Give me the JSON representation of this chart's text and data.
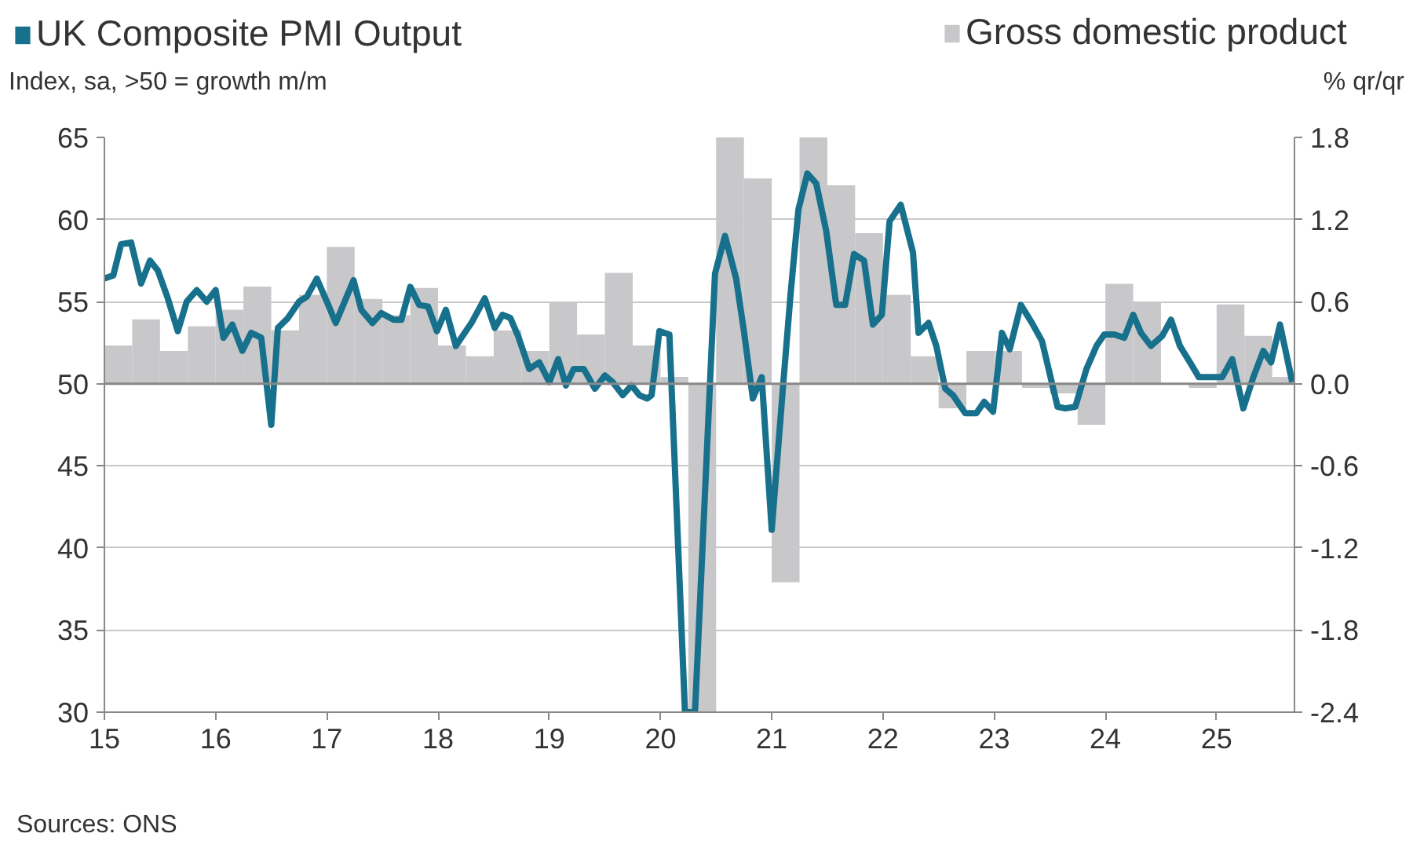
{
  "chart_data": {
    "type": "line",
    "ylabel": "Index, sa, >50 = growth m/m",
    "y2label": "% qr/qr",
    "xlim": [
      2015,
      2025.7
    ],
    "xticks": [
      {
        "value": 2015,
        "label": "15"
      },
      {
        "value": 2016,
        "label": "16"
      },
      {
        "value": 2017,
        "label": "17"
      },
      {
        "value": 2018,
        "label": "18"
      },
      {
        "value": 2019,
        "label": "19"
      },
      {
        "value": 2020,
        "label": "20"
      },
      {
        "value": 2021,
        "label": "21"
      },
      {
        "value": 2022,
        "label": "22"
      },
      {
        "value": 2023,
        "label": "23"
      },
      {
        "value": 2024,
        "label": "24"
      },
      {
        "value": 2025,
        "label": "25"
      }
    ],
    "ylim": [
      30,
      65
    ],
    "yticks": [
      30,
      35,
      40,
      45,
      50,
      55,
      60,
      65
    ],
    "y2lim": [
      -2.4,
      1.8
    ],
    "y2ticks": [
      {
        "value": -2.4,
        "label": "-2.4"
      },
      {
        "value": -1.8,
        "label": "-1.8"
      },
      {
        "value": -1.2,
        "label": "-1.2"
      },
      {
        "value": -0.6,
        "label": "-0.6"
      },
      {
        "value": 0,
        "label": "0.0"
      },
      {
        "value": 0.6,
        "label": "0.6"
      },
      {
        "value": 1.2,
        "label": "1.2"
      },
      {
        "value": 1.8,
        "label": "1.8"
      }
    ],
    "grid": "y",
    "legend": "top",
    "line_style": "solid",
    "marker": "none",
    "series": [
      {
        "name": "Gross domestic product",
        "type": "bar",
        "axis": "y2",
        "color": "#c8c8ca",
        "x": [
          2015.125,
          2015.375,
          2015.625,
          2015.875,
          2016.125,
          2016.375,
          2016.625,
          2016.875,
          2017.125,
          2017.375,
          2017.625,
          2017.875,
          2018.125,
          2018.375,
          2018.625,
          2018.875,
          2019.125,
          2019.375,
          2019.625,
          2019.875,
          2020.125,
          2020.375,
          2020.625,
          2020.875,
          2021.125,
          2021.375,
          2021.625,
          2021.875,
          2022.125,
          2022.375,
          2022.625,
          2022.875,
          2023.125,
          2023.375,
          2023.625,
          2023.875,
          2024.125,
          2024.375,
          2024.625,
          2024.875,
          2025.125,
          2025.375,
          2025.6
        ],
        "values": [
          0.28,
          0.47,
          0.24,
          0.42,
          0.54,
          0.71,
          0.39,
          0.65,
          1.0,
          0.62,
          0.5,
          0.7,
          0.28,
          0.2,
          0.39,
          0.24,
          0.6,
          0.36,
          0.81,
          0.28,
          0.05,
          -2.4,
          1.8,
          1.5,
          -1.45,
          1.8,
          1.45,
          1.1,
          0.65,
          0.2,
          -0.18,
          0.24,
          0.24,
          -0.03,
          -0.07,
          -0.3,
          0.73,
          0.6,
          null,
          -0.03,
          0.58,
          0.35,
          0.05
        ]
      },
      {
        "name": "UK Composite PMI Output",
        "color": "#17708c",
        "x": [
          2015.0,
          2015.08,
          2015.15,
          2015.24,
          2015.33,
          2015.41,
          2015.48,
          2015.57,
          2015.66,
          2015.74,
          2015.83,
          2015.92,
          2016.0,
          2016.07,
          2016.15,
          2016.24,
          2016.32,
          2016.41,
          2016.5,
          2016.56,
          2016.65,
          2016.75,
          2016.82,
          2016.91,
          2017.0,
          2017.08,
          2017.16,
          2017.24,
          2017.31,
          2017.41,
          2017.49,
          2017.6,
          2017.67,
          2017.75,
          2017.83,
          2017.91,
          2017.99,
          2018.07,
          2018.16,
          2018.3,
          2018.42,
          2018.51,
          2018.58,
          2018.65,
          2018.72,
          2018.82,
          2018.91,
          2019.0,
          2019.08,
          2019.15,
          2019.22,
          2019.31,
          2019.41,
          2019.5,
          2019.57,
          2019.66,
          2019.74,
          2019.81,
          2019.88,
          2019.92,
          2019.99,
          2020.08,
          2020.22,
          2020.31,
          2020.49,
          2020.58,
          2020.68,
          2020.75,
          2020.83,
          2020.91,
          2021.0,
          2021.1,
          2021.17,
          2021.24,
          2021.32,
          2021.4,
          2021.49,
          2021.58,
          2021.66,
          2021.74,
          2021.83,
          2021.91,
          2021.99,
          2022.06,
          2022.16,
          2022.27,
          2022.32,
          2022.41,
          2022.48,
          2022.56,
          2022.63,
          2022.74,
          2022.84,
          2022.91,
          2022.99,
          2023.07,
          2023.14,
          2023.24,
          2023.34,
          2023.43,
          2023.57,
          2023.64,
          2023.73,
          2023.83,
          2023.92,
          2023.99,
          2024.08,
          2024.17,
          2024.25,
          2024.32,
          2024.41,
          2024.51,
          2024.59,
          2024.67,
          2024.77,
          2024.84,
          2024.93,
          2025.05,
          2025.14,
          2025.24,
          2025.33,
          2025.42,
          2025.49,
          2025.57,
          2025.68
        ],
        "values": [
          56.4,
          56.6,
          58.5,
          58.6,
          56.1,
          57.5,
          56.9,
          55.2,
          53.2,
          55.0,
          55.7,
          55.0,
          55.7,
          52.8,
          53.6,
          52.0,
          53.1,
          52.8,
          47.5,
          53.4,
          54.0,
          55.0,
          55.3,
          56.4,
          55.0,
          53.7,
          55.0,
          56.3,
          54.5,
          53.7,
          54.3,
          53.9,
          53.9,
          55.9,
          54.8,
          54.7,
          53.2,
          54.5,
          52.3,
          53.7,
          55.2,
          53.4,
          54.2,
          54.0,
          52.9,
          50.9,
          51.3,
          50.1,
          51.5,
          49.9,
          50.9,
          50.9,
          49.7,
          50.5,
          50.1,
          49.3,
          49.9,
          49.3,
          49.1,
          49.3,
          53.2,
          53.0,
          30,
          30,
          56.7,
          59.0,
          56.4,
          53.2,
          49.1,
          50.4,
          41.1,
          49.7,
          55.5,
          60.6,
          62.8,
          62.2,
          59.3,
          54.8,
          54.8,
          57.9,
          57.5,
          53.6,
          54.2,
          59.9,
          60.9,
          58.0,
          53.1,
          53.7,
          52.3,
          49.7,
          49.3,
          48.2,
          48.2,
          48.9,
          48.3,
          53.1,
          52.1,
          54.8,
          53.7,
          52.6,
          48.6,
          48.5,
          48.6,
          50.9,
          52.3,
          53.0,
          53.0,
          52.8,
          54.2,
          53.1,
          52.3,
          52.9,
          53.9,
          52.3,
          51.2,
          50.4,
          50.4,
          50.4,
          51.5,
          48.5,
          50.4,
          52.0,
          51.3,
          53.6,
          50.1
        ]
      }
    ],
    "annotations": [
      "Sources: ONS"
    ]
  }
}
